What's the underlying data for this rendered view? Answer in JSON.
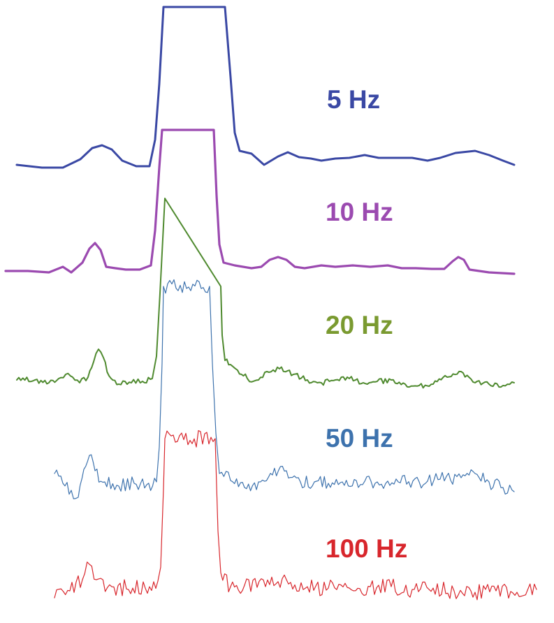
{
  "chart_data": {
    "type": "line",
    "title": "",
    "xlabel": "",
    "ylabel": "",
    "grid": false,
    "legend": "none",
    "series": [
      {
        "name": "5 Hz",
        "color": "#3a48a4",
        "points": [
          [
            24,
            236
          ],
          [
            60,
            240
          ],
          [
            90,
            240
          ],
          [
            115,
            228
          ],
          [
            132,
            212
          ],
          [
            146,
            208
          ],
          [
            160,
            214
          ],
          [
            175,
            230
          ],
          [
            195,
            238
          ],
          [
            214,
            238
          ],
          [
            222,
            200
          ],
          [
            228,
            120
          ],
          [
            234,
            10
          ],
          [
            322,
            10
          ],
          [
            330,
            110
          ],
          [
            336,
            190
          ],
          [
            343,
            216
          ],
          [
            360,
            220
          ],
          [
            378,
            236
          ],
          [
            398,
            224
          ],
          [
            412,
            218
          ],
          [
            428,
            225
          ],
          [
            445,
            227
          ],
          [
            460,
            230
          ],
          [
            480,
            227
          ],
          [
            500,
            226
          ],
          [
            522,
            222
          ],
          [
            542,
            226
          ],
          [
            566,
            226
          ],
          [
            590,
            226
          ],
          [
            612,
            230
          ],
          [
            630,
            226
          ],
          [
            652,
            219
          ],
          [
            680,
            216
          ],
          [
            700,
            222
          ],
          [
            720,
            230
          ],
          [
            736,
            236
          ]
        ]
      },
      {
        "name": "10 Hz",
        "color": "#9b4ab0",
        "points": [
          [
            8,
            388
          ],
          [
            40,
            388
          ],
          [
            70,
            390
          ],
          [
            90,
            382
          ],
          [
            102,
            390
          ],
          [
            118,
            376
          ],
          [
            128,
            356
          ],
          [
            136,
            348
          ],
          [
            144,
            358
          ],
          [
            152,
            382
          ],
          [
            165,
            384
          ],
          [
            180,
            386
          ],
          [
            200,
            386
          ],
          [
            216,
            380
          ],
          [
            222,
            330
          ],
          [
            228,
            240
          ],
          [
            232,
            186
          ],
          [
            306,
            186
          ],
          [
            310,
            280
          ],
          [
            314,
            350
          ],
          [
            320,
            376
          ],
          [
            336,
            380
          ],
          [
            360,
            384
          ],
          [
            374,
            382
          ],
          [
            386,
            372
          ],
          [
            398,
            368
          ],
          [
            410,
            372
          ],
          [
            422,
            382
          ],
          [
            436,
            384
          ],
          [
            460,
            380
          ],
          [
            480,
            382
          ],
          [
            505,
            380
          ],
          [
            530,
            382
          ],
          [
            555,
            380
          ],
          [
            575,
            384
          ],
          [
            595,
            384
          ],
          [
            618,
            385
          ],
          [
            636,
            385
          ],
          [
            648,
            374
          ],
          [
            656,
            368
          ],
          [
            664,
            372
          ],
          [
            672,
            386
          ],
          [
            700,
            390
          ],
          [
            736,
            392
          ]
        ]
      },
      {
        "name": "20 Hz",
        "color": "#4f8a2f",
        "noise": 4,
        "points": [
          [
            24,
            544
          ],
          [
            50,
            544
          ],
          [
            70,
            548
          ],
          [
            84,
            542
          ],
          [
            94,
            536
          ],
          [
            104,
            540
          ],
          [
            114,
            548
          ],
          [
            126,
            540
          ],
          [
            134,
            518
          ],
          [
            141,
            500
          ],
          [
            148,
            512
          ],
          [
            156,
            538
          ],
          [
            170,
            550
          ],
          [
            188,
            548
          ],
          [
            204,
            546
          ],
          [
            218,
            542
          ],
          [
            224,
            510
          ],
          [
            229,
            420
          ],
          [
            236,
            284
          ],
          [
            316,
            410
          ],
          [
            318,
            480
          ],
          [
            322,
            516
          ],
          [
            330,
            522
          ],
          [
            340,
            530
          ],
          [
            354,
            542
          ],
          [
            370,
            544
          ],
          [
            382,
            532
          ],
          [
            400,
            528
          ],
          [
            420,
            536
          ],
          [
            440,
            544
          ],
          [
            460,
            548
          ],
          [
            480,
            544
          ],
          [
            500,
            542
          ],
          [
            520,
            548
          ],
          [
            540,
            546
          ],
          [
            560,
            544
          ],
          [
            580,
            550
          ],
          [
            600,
            552
          ],
          [
            620,
            550
          ],
          [
            640,
            540
          ],
          [
            660,
            532
          ],
          [
            680,
            548
          ],
          [
            700,
            550
          ],
          [
            720,
            552
          ],
          [
            736,
            548
          ]
        ]
      },
      {
        "name": "50 Hz",
        "color": "#3d72ad",
        "noise": 10,
        "points": [
          [
            78,
            678
          ],
          [
            90,
            692
          ],
          [
            102,
            702
          ],
          [
            112,
            712
          ],
          [
            120,
            672
          ],
          [
            128,
            652
          ],
          [
            136,
            674
          ],
          [
            150,
            690
          ],
          [
            170,
            696
          ],
          [
            192,
            692
          ],
          [
            210,
            694
          ],
          [
            224,
            690
          ],
          [
            228,
            640
          ],
          [
            232,
            520
          ],
          [
            234,
            410
          ],
          [
            300,
            410
          ],
          [
            304,
            520
          ],
          [
            309,
            620
          ],
          [
            314,
            678
          ],
          [
            330,
            688
          ],
          [
            350,
            698
          ],
          [
            370,
            690
          ],
          [
            390,
            680
          ],
          [
            410,
            674
          ],
          [
            430,
            690
          ],
          [
            450,
            690
          ],
          [
            470,
            692
          ],
          [
            490,
            690
          ],
          [
            510,
            688
          ],
          [
            540,
            690
          ],
          [
            570,
            690
          ],
          [
            600,
            690
          ],
          [
            630,
            686
          ],
          [
            660,
            684
          ],
          [
            680,
            678
          ],
          [
            700,
            690
          ],
          [
            720,
            698
          ],
          [
            736,
            704
          ]
        ]
      },
      {
        "name": "100 Hz",
        "color": "#d8262c",
        "noise": 12,
        "points": [
          [
            78,
            856
          ],
          [
            100,
            846
          ],
          [
            118,
            830
          ],
          [
            128,
            808
          ],
          [
            138,
            830
          ],
          [
            160,
            840
          ],
          [
            190,
            842
          ],
          [
            214,
            840
          ],
          [
            226,
            832
          ],
          [
            230,
            812
          ],
          [
            234,
            700
          ],
          [
            236,
            628
          ],
          [
            308,
            628
          ],
          [
            312,
            760
          ],
          [
            316,
            820
          ],
          [
            330,
            840
          ],
          [
            350,
            838
          ],
          [
            380,
            840
          ],
          [
            410,
            830
          ],
          [
            440,
            840
          ],
          [
            470,
            842
          ],
          [
            500,
            842
          ],
          [
            530,
            840
          ],
          [
            560,
            840
          ],
          [
            590,
            844
          ],
          [
            620,
            842
          ],
          [
            650,
            846
          ],
          [
            680,
            848
          ],
          [
            710,
            846
          ],
          [
            740,
            848
          ],
          [
            768,
            844
          ]
        ]
      }
    ]
  },
  "labels": [
    {
      "text": "5 Hz",
      "color": "#3a48a4"
    },
    {
      "text": "10 Hz",
      "color": "#9b4ab0"
    },
    {
      "text": "20 Hz",
      "color": "#7a9a30"
    },
    {
      "text": "50 Hz",
      "color": "#3d72ad"
    },
    {
      "text": "100 Hz",
      "color": "#d8262c"
    }
  ]
}
